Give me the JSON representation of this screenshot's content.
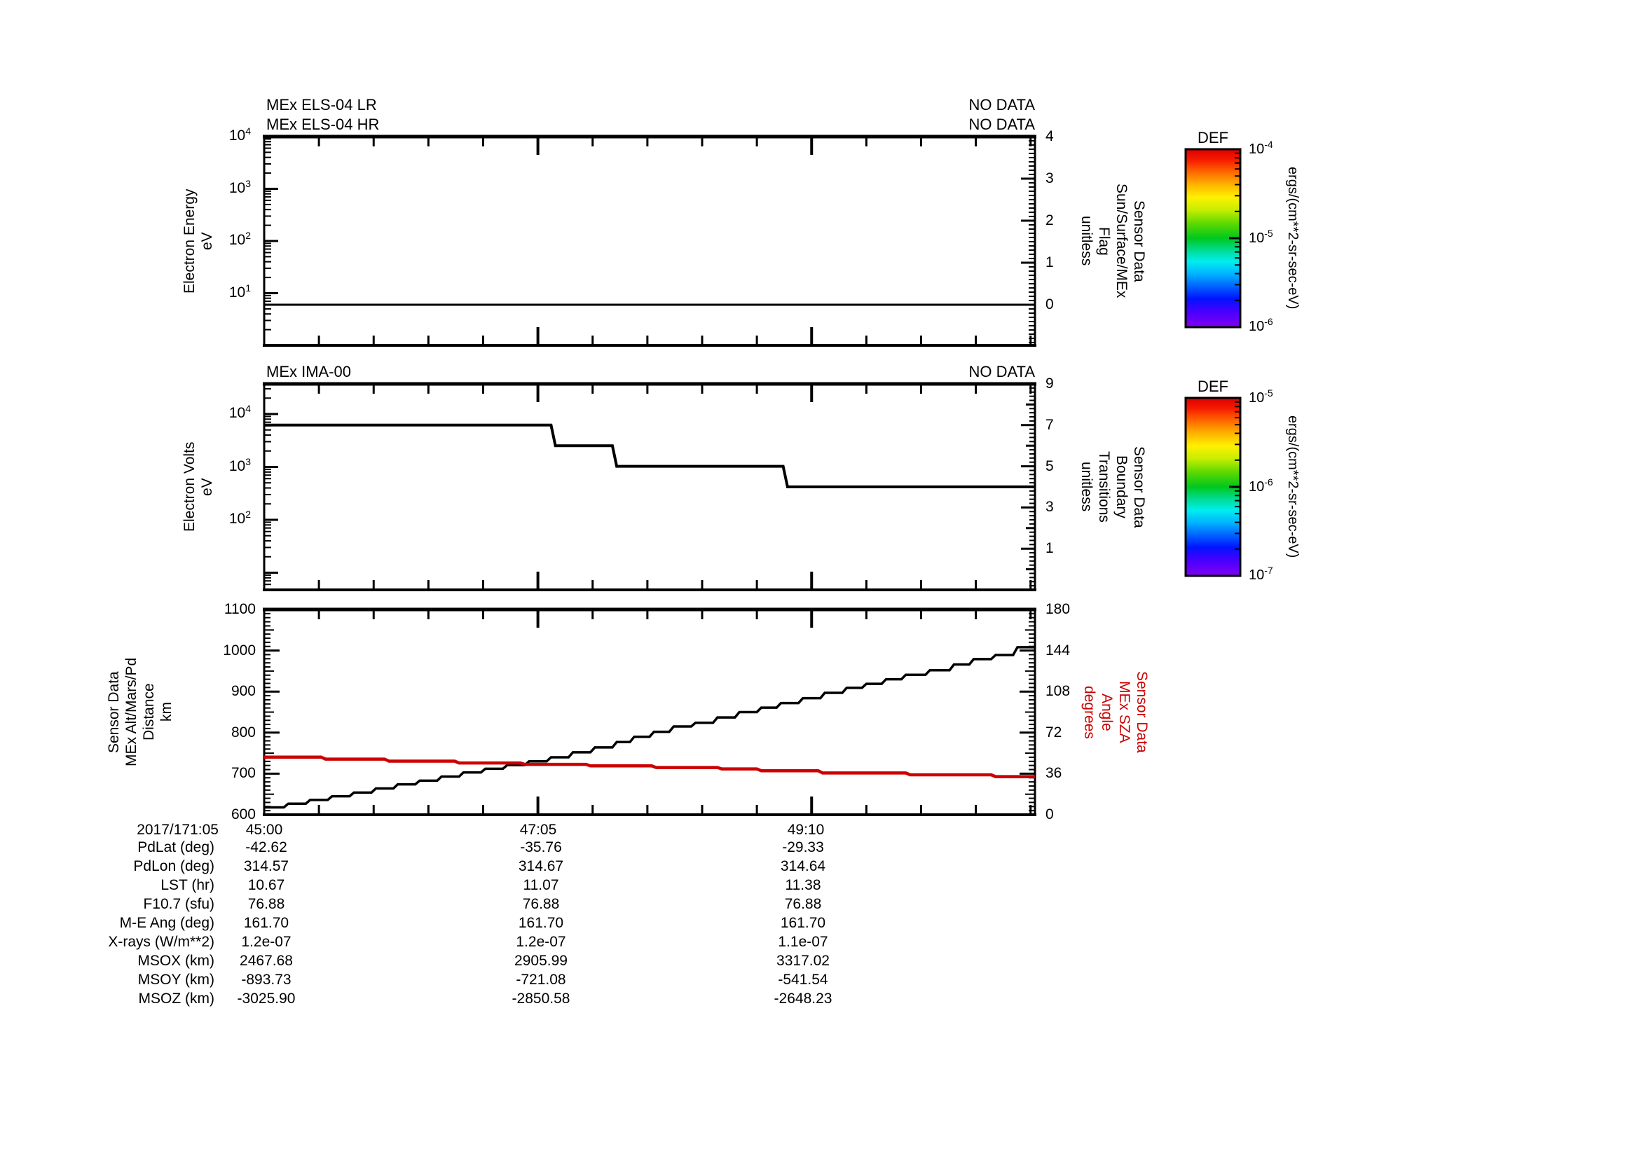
{
  "page": {
    "background": "#ffffff",
    "line_color": "#000000",
    "sza_color": "#cc0000"
  },
  "panels": {
    "els": {
      "titles": [
        "MEx ELS-04 LR",
        "MEx ELS-04 HR"
      ],
      "no_data": [
        "NO DATA",
        "NO DATA"
      ],
      "left_label_lines": [
        "Electron Energy",
        "eV"
      ],
      "left_tick_exponents": [
        "4",
        "3",
        "2",
        "1"
      ],
      "right_label_lines": [
        "Sensor Data",
        "Sun/Surface/MEx",
        "Flag",
        "unitless"
      ],
      "right_tick_labels": [
        "4",
        "3",
        "2",
        "1",
        "0"
      ]
    },
    "ima": {
      "title": "MEx IMA-00",
      "no_data": "NO DATA",
      "left_label_lines": [
        "Electron Volts",
        "eV"
      ],
      "left_tick_exponents": [
        "4",
        "3",
        "2"
      ],
      "right_label_lines": [
        "Sensor Data",
        "Boundary",
        "Transitions",
        "unitless"
      ],
      "right_tick_labels": [
        "9",
        "7",
        "5",
        "3",
        "1"
      ]
    },
    "alt": {
      "left_label_lines": [
        "Sensor Data",
        "MEx Alt/Mars/Pd",
        "Distance",
        "km"
      ],
      "left_tick_labels": [
        "1100",
        "1000",
        "900",
        "800",
        "700",
        "600"
      ],
      "right_label_lines": [
        "Sensor Data",
        "MEx SZA",
        "Angle",
        "degrees"
      ],
      "right_tick_labels": [
        "180",
        "144",
        "108",
        "72",
        "36",
        "0"
      ],
      "right_label_color": "#cc0000"
    }
  },
  "xaxis": {
    "date_prefix": "2017/171:05",
    "tick_labels": [
      "45:00",
      "47:05",
      "49:10"
    ],
    "tick_seconds": [
      0,
      125,
      250
    ]
  },
  "colorbars": [
    {
      "title": "DEF",
      "tick_exponents": [
        "-4",
        "-5",
        "-6"
      ],
      "units": "ergs/(cm**2-sr-sec-eV)"
    },
    {
      "title": "DEF",
      "tick_exponents": [
        "-5",
        "-6",
        "-7"
      ],
      "units": "ergs/(cm**2-sr-sec-eV)"
    }
  ],
  "colorbar_gradient": [
    [
      0.0,
      "#dd0000"
    ],
    [
      0.06,
      "#f61b00"
    ],
    [
      0.13,
      "#ff6a00"
    ],
    [
      0.2,
      "#ffb400"
    ],
    [
      0.27,
      "#fff000"
    ],
    [
      0.34,
      "#c8ee00"
    ],
    [
      0.42,
      "#5ad800"
    ],
    [
      0.5,
      "#00c81e"
    ],
    [
      0.57,
      "#00dc96"
    ],
    [
      0.63,
      "#00eeee"
    ],
    [
      0.7,
      "#00b4ff"
    ],
    [
      0.77,
      "#0064ff"
    ],
    [
      0.84,
      "#0014ff"
    ],
    [
      0.91,
      "#4600ff"
    ],
    [
      1.0,
      "#8200f0"
    ]
  ],
  "table": {
    "rows": [
      {
        "label": "PdLat (deg)",
        "values": [
          "-42.62",
          "-35.76",
          "-29.33"
        ]
      },
      {
        "label": "PdLon (deg)",
        "values": [
          "314.57",
          "314.67",
          "314.64"
        ]
      },
      {
        "label": "LST (hr)",
        "values": [
          "10.67",
          "11.07",
          "11.38"
        ]
      },
      {
        "label": "F10.7 (sfu)",
        "values": [
          "76.88",
          "76.88",
          "76.88"
        ]
      },
      {
        "label": "M-E Ang (deg)",
        "values": [
          "161.70",
          "161.70",
          "161.70"
        ]
      },
      {
        "label": "X-rays (W/m**2)",
        "values": [
          "1.2e-07",
          "1.2e-07",
          "1.1e-07"
        ]
      },
      {
        "label": "MSOX (km)",
        "values": [
          "2467.68",
          "2905.99",
          "3317.02"
        ]
      },
      {
        "label": "MSOY (km)",
        "values": [
          "-893.73",
          "-721.08",
          "-541.54"
        ]
      },
      {
        "label": "MSOZ (km)",
        "values": [
          "-3025.90",
          "-2850.58",
          "-2648.23"
        ]
      }
    ]
  },
  "chart_data": [
    {
      "id": "els",
      "type": "line",
      "titles": [
        "MEx ELS-04 LR",
        "MEx ELS-04 HR"
      ],
      "status": "NO DATA",
      "x_axis": {
        "label": "time 2017/171 05:mm:ss",
        "tick_labels": [
          "45:00",
          "47:05",
          "49:10"
        ],
        "tick_seconds": [
          0,
          125,
          250
        ],
        "range_seconds": [
          0,
          352
        ]
      },
      "left_axis": {
        "label": "Electron Energy eV",
        "scale": "log",
        "range": [
          1,
          10000
        ],
        "tick_labels": [
          "10^1",
          "10^2",
          "10^3",
          "10^4"
        ]
      },
      "right_axis": {
        "label": "Sensor Data Sun/Surface/MEx Flag unitless",
        "range": [
          -1,
          4
        ],
        "ticks": [
          0,
          1,
          2,
          3,
          4
        ]
      },
      "series": [
        {
          "name": "sun-surface-mex-flag",
          "axis": "right",
          "color": "#000000",
          "type": "step",
          "steps": [
            [
              0,
              0
            ]
          ]
        }
      ]
    },
    {
      "id": "ima",
      "type": "line",
      "titles": [
        "MEx IMA-00"
      ],
      "status": "NO DATA",
      "x_axis": {
        "label": "time 2017/171 05:mm:ss",
        "tick_labels": [
          "45:00",
          "47:05",
          "49:10"
        ],
        "tick_seconds": [
          0,
          125,
          250
        ],
        "range_seconds": [
          0,
          352
        ]
      },
      "left_axis": {
        "label": "Electron Volts eV",
        "scale": "log",
        "range": [
          5,
          37000
        ],
        "tick_labels": [
          "10^2",
          "10^3",
          "10^4"
        ]
      },
      "right_axis": {
        "label": "Sensor Data Boundary Transitions unitless",
        "range": [
          -1,
          9
        ],
        "ticks": [
          1,
          3,
          5,
          7,
          9
        ]
      },
      "series": [
        {
          "name": "boundary-transitions",
          "axis": "right",
          "color": "#000000",
          "type": "step",
          "steps": [
            [
              0,
              7
            ],
            [
              132,
              6
            ],
            [
              160,
              5
            ],
            [
              238,
              4
            ]
          ]
        }
      ]
    },
    {
      "id": "alt",
      "type": "line",
      "x_axis": {
        "label": "time 2017/171 05:mm:ss",
        "tick_labels": [
          "45:00",
          "47:05",
          "49:10"
        ],
        "tick_seconds": [
          0,
          125,
          250
        ],
        "range_seconds": [
          0,
          352
        ]
      },
      "left_axis": {
        "label": "Sensor Data MEx Alt/Mars/Pd Distance km",
        "range": [
          600,
          1100
        ],
        "ticks": [
          600,
          700,
          800,
          900,
          1000,
          1100
        ]
      },
      "right_axis": {
        "label": "Sensor Data MEx SZA Angle degrees",
        "range": [
          0,
          180
        ],
        "ticks": [
          0,
          36,
          72,
          108,
          144,
          180
        ]
      },
      "series": [
        {
          "name": "mex-altitude-km",
          "axis": "left",
          "color": "#000000",
          "type": "step",
          "steps": [
            [
              0,
              618
            ],
            [
              10,
              627
            ],
            [
              20,
              636
            ],
            [
              30,
              645
            ],
            [
              40,
              654
            ],
            [
              50,
              664
            ],
            [
              60,
              674
            ],
            [
              70,
              683
            ],
            [
              80,
              693
            ],
            [
              90,
              703
            ],
            [
              100,
              712
            ],
            [
              110,
              721
            ],
            [
              120,
              730
            ],
            [
              130,
              740
            ],
            [
              140,
              752
            ],
            [
              150,
              764
            ],
            [
              160,
              777
            ],
            [
              168,
              790
            ],
            [
              177,
              802
            ],
            [
              186,
              815
            ],
            [
              196,
              824
            ],
            [
              206,
              837
            ],
            [
              216,
              850
            ],
            [
              226,
              861
            ],
            [
              235,
              872
            ],
            [
              245,
              884
            ],
            [
              255,
              897
            ],
            [
              265,
              909
            ],
            [
              274,
              919
            ],
            [
              283,
              930
            ],
            [
              292,
              941
            ],
            [
              303,
              952
            ],
            [
              314,
              966
            ],
            [
              323,
              979
            ],
            [
              333,
              989
            ],
            [
              343,
              1008
            ]
          ]
        },
        {
          "name": "mex-sza-deg",
          "axis": "right",
          "color": "#cc0000",
          "type": "step",
          "steps": [
            [
              0,
              50.5
            ],
            [
              27,
              48.8
            ],
            [
              56,
              47.0
            ],
            [
              88,
              45.4
            ],
            [
              118,
              44.2
            ],
            [
              148,
              42.8
            ],
            [
              178,
              41.4
            ],
            [
              208,
              40.2
            ],
            [
              226,
              38.6
            ],
            [
              254,
              36.6
            ],
            [
              294,
              35.0
            ],
            [
              333,
              33.4
            ]
          ]
        }
      ]
    }
  ]
}
